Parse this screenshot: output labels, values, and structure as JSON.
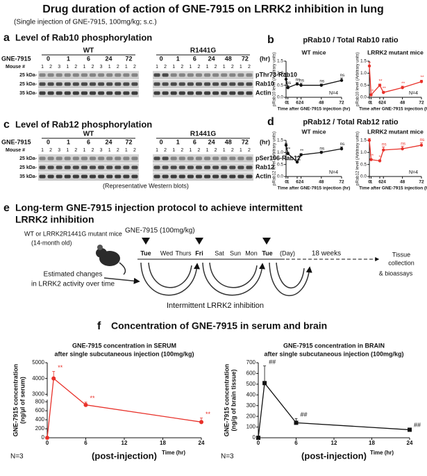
{
  "header": {
    "title": "Drug duration of action of GNE-7915 on LRRK2 inhibition in lung",
    "subtitle": "(Single injection of GNE-7915, 100mg/kg; s.c.)"
  },
  "blots": [
    {
      "letter": "a",
      "title": "Level of Rab10 phosphorylation",
      "dose_label": "GNE-7915",
      "mouse_label": "Mouse #",
      "unit": "(hr)",
      "groups": [
        {
          "label": "WT",
          "doses": [
            "0",
            "1",
            "6",
            "24",
            "72"
          ],
          "mice": [
            "1",
            "2",
            "3",
            "1",
            "2",
            "1",
            "2",
            "3",
            "1",
            "2",
            "1",
            "2"
          ]
        },
        {
          "label": "R1441G",
          "doses": [
            "0",
            "1",
            "6",
            "24",
            "48",
            "72"
          ],
          "mice": [
            "1",
            "2",
            "1",
            "2",
            "1",
            "2",
            "1",
            "2",
            "1",
            "2",
            "1",
            "2"
          ]
        }
      ],
      "markers": [
        "25 kDa-",
        "25 kDa-",
        "35 kDa-"
      ],
      "bands": [
        "pThr73-Rab10",
        "Rab10",
        "Actin"
      ]
    },
    {
      "letter": "c",
      "title": "Level of Rab12 phosphorylation",
      "dose_label": "GNE-7915",
      "mouse_label": "Mouse #",
      "unit": "(hr)",
      "groups": [
        {
          "label": "WT",
          "doses": [
            "0",
            "1",
            "6",
            "24",
            "72"
          ],
          "mice": [
            "1",
            "2",
            "3",
            "1",
            "2",
            "1",
            "2",
            "3",
            "1",
            "2",
            "1",
            "2"
          ]
        },
        {
          "label": "R1441G",
          "doses": [
            "0",
            "1",
            "6",
            "24",
            "48",
            "72"
          ],
          "mice": [
            "1",
            "2",
            "1",
            "2",
            "1",
            "2",
            "1",
            "2",
            "1",
            "2",
            "1",
            "2"
          ]
        }
      ],
      "markers": [
        "25 kDa-",
        "25 kDa-",
        "35 kDa-"
      ],
      "bands": [
        "pSer106-Rab12",
        "Rab12",
        "Actin"
      ],
      "caption": "(Representative Western blots)"
    }
  ],
  "panels": {
    "b": {
      "letter": "b",
      "title": "pRab10 / Total Rab10 ratio"
    },
    "d": {
      "letter": "d",
      "title": "pRab12 / Total Rab12 ratio"
    },
    "f": {
      "letter": "f",
      "title": "Concentration of GNE-7915 in serum and brain",
      "n_left": "N=3",
      "n_right": "N=3"
    }
  },
  "protocol": {
    "letter": "e",
    "title_line1": "Long-term GNE-7915 injection protocol to achieve intermittent",
    "title_line2": "LRRK2 inhibition",
    "mice": "WT or LRRK2R1441G mutant mice",
    "age": "(14-month old)",
    "dose": "GNE-7915 (100mg/kg)",
    "days": [
      "Tue",
      "Wed",
      "Thurs",
      "Fri",
      "Sat",
      "Sun",
      "Mon",
      "Tue",
      "(Day)"
    ],
    "duration": "18 weeks",
    "endpoint_line1": "Tissue",
    "endpoint_line2": "collection",
    "endpoint_line3": "& bioassays",
    "estimate_line1": "Estimated changes",
    "estimate_line2": "in LRRK2 activity over time",
    "inhibition": "Intermittent LRRK2 inhibition"
  },
  "chart_data": [
    {
      "type": "line",
      "title": "WT mice",
      "xlabel": "Time after GNE-7915 injection (hr)",
      "ylabel": "pRab10 level (Arbitrary units)",
      "note": "N=4",
      "x": [
        0,
        1,
        6,
        24,
        48,
        72
      ],
      "xlim": [
        0,
        72
      ],
      "xticks": [
        0,
        1,
        6,
        24,
        48,
        72
      ],
      "xbreak": [
        6,
        24
      ],
      "ylim": [
        0,
        1.5
      ],
      "yticks": [
        {
          "value": 0,
          "label": "0.0"
        },
        {
          "value": 0.5,
          "label": "0.5"
        },
        {
          "value": 1,
          "label": "1.0"
        },
        {
          "value": 1.5,
          "label": "1.5"
        }
      ],
      "series": [
        {
          "color": "#111111",
          "marker": "circle",
          "values": [
            0.75,
            0.4,
            0.55,
            0.5,
            0.5,
            0.7
          ],
          "errors": [
            0.1,
            0.08,
            0.06,
            0.08,
            0.05,
            0.1
          ],
          "annotations": [
            null,
            "ns",
            "ns",
            "ns",
            "ns",
            "ns"
          ]
        }
      ]
    },
    {
      "type": "line",
      "title": "LRRK2 mutant mice",
      "xlabel": "Time after GNE-7915 injection (hr)",
      "ylabel": "pRab10 level (Arbitrary units)",
      "note": "N=4",
      "x": [
        0,
        1,
        6,
        24,
        48,
        72
      ],
      "xlim": [
        0,
        72
      ],
      "xticks": [
        0,
        1,
        6,
        24,
        48,
        72
      ],
      "xbreak": [
        6,
        24
      ],
      "ylim": [
        0,
        1.5
      ],
      "yticks": [
        {
          "value": 0,
          "label": "0.0"
        },
        {
          "value": 0.5,
          "label": "0.5"
        },
        {
          "value": 1,
          "label": "1.0"
        },
        {
          "value": 1.5,
          "label": "1.5"
        }
      ],
      "series": [
        {
          "color": "#e8312a",
          "marker": "circle",
          "values": [
            1.3,
            0.1,
            0.5,
            0.2,
            0.4,
            0.65
          ],
          "errors": [
            0.15,
            0.04,
            0.05,
            0.05,
            0.06,
            0.06
          ],
          "annotations": [
            null,
            "**",
            "**",
            "**",
            "**",
            "**"
          ]
        }
      ]
    },
    {
      "type": "line",
      "title": "WT mice",
      "xlabel": "Time after GNE-7915 injection (hr)",
      "ylabel": "pRab12 level (Arbitrary units)",
      "note": "N=4",
      "x": [
        0,
        1,
        6,
        24,
        48,
        72
      ],
      "xlim": [
        0,
        72
      ],
      "xticks": [
        0,
        1,
        6,
        24,
        48,
        72
      ],
      "xbreak": [
        6,
        24
      ],
      "ylim": [
        0,
        1.5
      ],
      "yticks": [
        {
          "value": 0,
          "label": "0.0"
        },
        {
          "value": 0.5,
          "label": "0.5"
        },
        {
          "value": 1,
          "label": "1.0"
        },
        {
          "value": 1.5,
          "label": "1.5"
        }
      ],
      "series": [
        {
          "color": "#111111",
          "marker": "circle",
          "values": [
            1.3,
            0.95,
            0.6,
            0.9,
            1.0,
            1.15
          ],
          "errors": [
            0.08,
            0.06,
            0.05,
            0.05,
            0.05,
            0.08
          ],
          "annotations": [
            null,
            "**",
            "**",
            "**",
            "ns",
            "ns"
          ]
        }
      ]
    },
    {
      "type": "line",
      "title": "LRRK2 mutant mice",
      "xlabel": "Time after GNE-7915 injection (hr)",
      "ylabel": "pRab12 level (Arbitrary units)",
      "note": "N=4",
      "x": [
        0,
        1,
        6,
        24,
        48,
        72
      ],
      "xlim": [
        0,
        72
      ],
      "xticks": [
        0,
        1,
        6,
        24,
        48,
        72
      ],
      "xbreak": [
        6,
        24
      ],
      "ylim": [
        0,
        1.5
      ],
      "yticks": [
        {
          "value": 0,
          "label": "0.0"
        },
        {
          "value": 0.5,
          "label": "0.5"
        },
        {
          "value": 1,
          "label": "1.0"
        },
        {
          "value": 1.5,
          "label": "1.5"
        }
      ],
      "series": [
        {
          "color": "#e8312a",
          "marker": "circle",
          "values": [
            1.5,
            0.7,
            0.65,
            1.1,
            1.15,
            1.3
          ],
          "errors": [
            0.08,
            0.04,
            0.04,
            0.12,
            0.1,
            0.1
          ],
          "annotations": [
            null,
            "**",
            "**",
            "ns",
            "ns",
            "ns"
          ]
        }
      ]
    },
    {
      "type": "line",
      "title": "GNE-7915 concentration in SERUM",
      "subtitle": "after single subcutaneous injection (100mg/kg)",
      "xlabel": "Time (hr)",
      "xlabel2": "(post-injection)",
      "ylabel": "GNE-7915 concentration",
      "ylabel2": "(ng/µl of serum)",
      "x": [
        0,
        1,
        6,
        24
      ],
      "xlim": [
        0,
        24
      ],
      "xticks": [
        0,
        6,
        12,
        18,
        24
      ],
      "ylim": [
        0,
        5000
      ],
      "ybreak": [
        800,
        3000
      ],
      "yticks": [
        0,
        200,
        400,
        600,
        800,
        3000,
        4000,
        5000
      ],
      "series": [
        {
          "color": "#e8312a",
          "marker": "circle",
          "values": [
            0,
            4000,
            730,
            350
          ],
          "errors": [
            0,
            450,
            60,
            90
          ],
          "annotations": [
            null,
            "**",
            "**",
            "**"
          ]
        }
      ]
    },
    {
      "type": "line",
      "title": "GNE-7915 concentration in BRAIN",
      "subtitle": "after single subcutaneous injection (100mg/kg)",
      "xlabel": "Time (hr)",
      "xlabel2": "(post-injection)",
      "ylabel": "GNE-7915 concentration",
      "ylabel2": "(ng/g of brain tissue)",
      "x": [
        0,
        1,
        6,
        24
      ],
      "xlim": [
        0,
        24
      ],
      "xticks": [
        0,
        6,
        12,
        18,
        24
      ],
      "ylim": [
        0,
        700
      ],
      "yticks": [
        0,
        100,
        200,
        300,
        400,
        500,
        600,
        700
      ],
      "series": [
        {
          "color": "#111111",
          "marker": "square",
          "values": [
            0,
            510,
            140,
            75
          ],
          "errors": [
            0,
            160,
            40,
            8
          ],
          "annotations": [
            null,
            "##",
            "##",
            "##"
          ]
        }
      ]
    }
  ]
}
